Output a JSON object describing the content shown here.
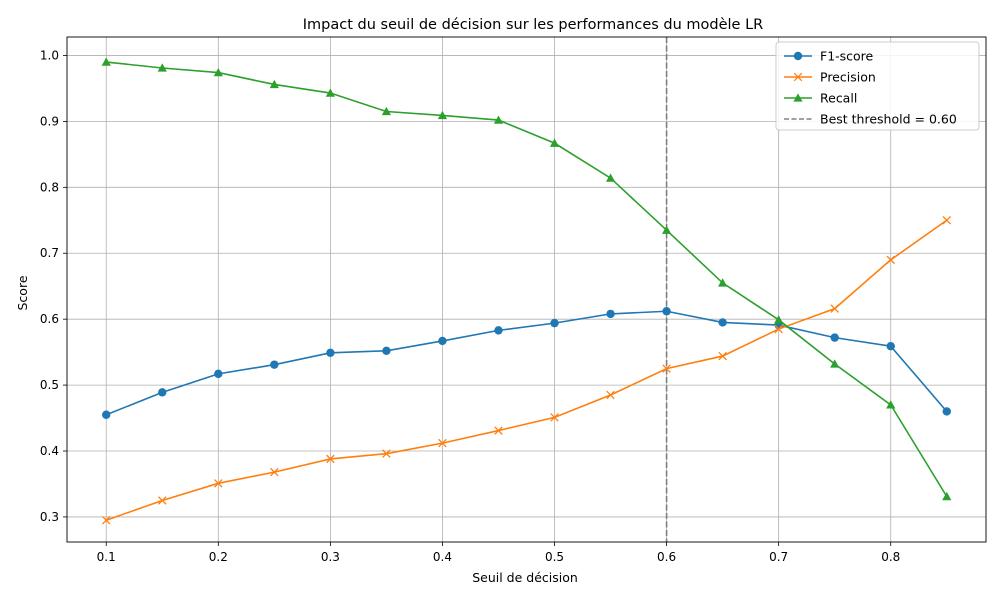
{
  "chart_data": {
    "type": "line",
    "title": "Impact du seuil de décision sur les performances du modèle LR",
    "xlabel": "Seuil de décision",
    "ylabel": "Score",
    "xlim": [
      0.065,
      0.885
    ],
    "ylim": [
      0.262,
      1.028
    ],
    "xticks": [
      0.1,
      0.2,
      0.3,
      0.4,
      0.5,
      0.6,
      0.7,
      0.8
    ],
    "xtick_labels": [
      "0.1",
      "0.2",
      "0.3",
      "0.4",
      "0.5",
      "0.6",
      "0.7",
      "0.8"
    ],
    "yticks": [
      0.3,
      0.4,
      0.5,
      0.6,
      0.7,
      0.8,
      0.9,
      1.0
    ],
    "ytick_labels": [
      "0.3",
      "0.4",
      "0.5",
      "0.6",
      "0.7",
      "0.8",
      "0.9",
      "1.0"
    ],
    "grid": true,
    "legend_position": "top-right",
    "x": [
      0.1,
      0.15,
      0.2,
      0.25,
      0.3,
      0.35,
      0.4,
      0.45,
      0.5,
      0.55,
      0.6,
      0.65,
      0.7,
      0.75,
      0.8,
      0.85
    ],
    "series": [
      {
        "name": "F1-score",
        "color": "#1f77b4",
        "marker": "circle",
        "values": [
          0.455,
          0.489,
          0.517,
          0.531,
          0.549,
          0.552,
          0.567,
          0.583,
          0.594,
          0.608,
          0.612,
          0.595,
          0.591,
          0.572,
          0.559,
          0.46
        ]
      },
      {
        "name": "Precision",
        "color": "#ff7f0e",
        "marker": "x",
        "values": [
          0.295,
          0.325,
          0.351,
          0.368,
          0.388,
          0.396,
          0.412,
          0.431,
          0.451,
          0.485,
          0.525,
          0.544,
          0.585,
          0.616,
          0.69,
          0.75
        ]
      },
      {
        "name": "Recall",
        "color": "#2ca02c",
        "marker": "triangle",
        "values": [
          0.99,
          0.981,
          0.974,
          0.956,
          0.943,
          0.915,
          0.909,
          0.902,
          0.867,
          0.814,
          0.735,
          0.655,
          0.599,
          0.532,
          0.47,
          0.331
        ]
      }
    ],
    "reference_line": {
      "name": "Best threshold = 0.60",
      "x": 0.6,
      "color": "#808080",
      "style": "dashed"
    }
  }
}
